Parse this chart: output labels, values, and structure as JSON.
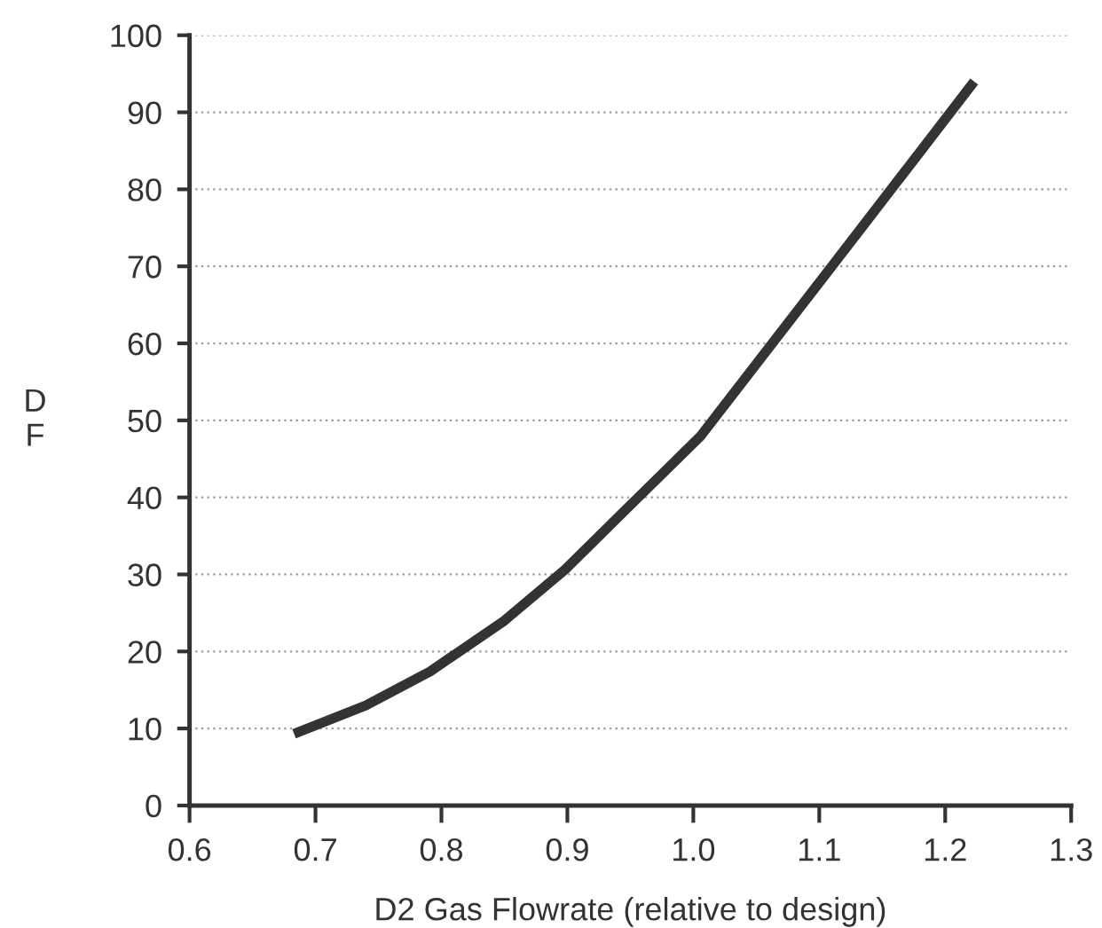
{
  "chart_data": {
    "type": "line",
    "xlabel": "D2 Gas Flowrate (relative to design)",
    "ylabel": "D\nF",
    "x": [
      0.683,
      0.74,
      0.791,
      0.85,
      0.898,
      0.95,
      1.006,
      1.11,
      1.223
    ],
    "series": [
      {
        "color": "#333333",
        "values": [
          9.3,
          13,
          17.4,
          24,
          30.6,
          39,
          48,
          70,
          94
        ]
      }
    ],
    "xlim": [
      0.6,
      1.3
    ],
    "xticks": [
      0.6,
      0.7,
      0.8,
      0.9,
      {
        "value": 1.0,
        "label": "1.0"
      },
      1.1,
      1.2,
      1.3
    ],
    "ylim": [
      0,
      100
    ],
    "yticks": [
      0,
      10,
      20,
      30,
      40,
      50,
      60,
      70,
      80,
      90,
      100
    ],
    "grid": "y",
    "line_style": "solid",
    "marker": "none"
  }
}
